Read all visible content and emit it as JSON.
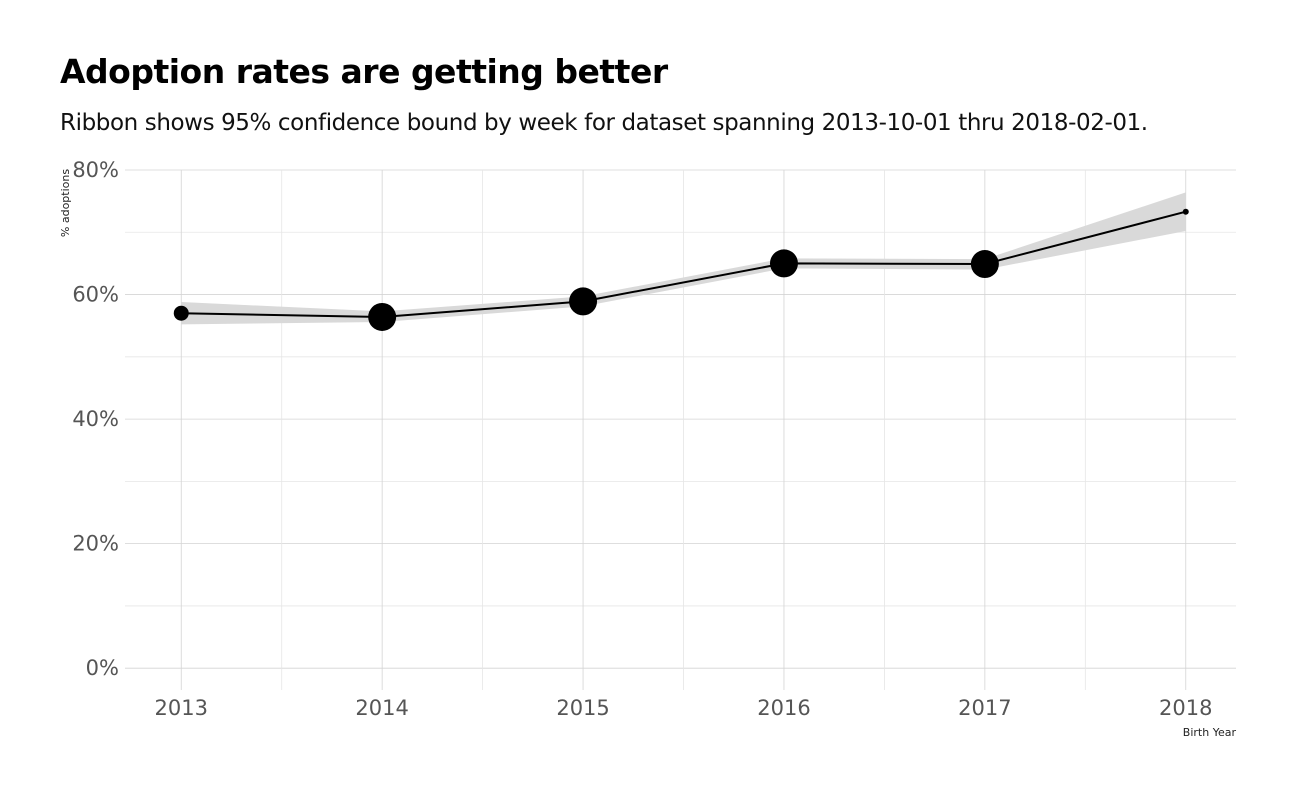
{
  "chart_data": {
    "type": "line",
    "title": "Adoption rates are getting better",
    "subtitle": "Ribbon shows 95% confidence bound by week for dataset spanning 2013-10-01 thru 2018-02-01.",
    "xlabel": "Birth Year",
    "ylabel": "% adoptions",
    "x": [
      2013,
      2014,
      2015,
      2016,
      2017,
      2018
    ],
    "x_ticks": [
      "2013",
      "2014",
      "2015",
      "2016",
      "2017",
      "2018"
    ],
    "xlim": [
      2012.72,
      2018.25
    ],
    "ylim": [
      -3.5,
      80
    ],
    "y_ticks": [
      0,
      20,
      40,
      60,
      80
    ],
    "y_tick_labels": [
      "0%",
      "20%",
      "40%",
      "60%",
      "80%"
    ],
    "grid": true,
    "series": [
      {
        "values": [
          57.0,
          56.4,
          58.9,
          65.0,
          64.9,
          73.3
        ],
        "lower": [
          55.2,
          55.6,
          58.1,
          64.2,
          64.0,
          70.2
        ],
        "upper": [
          58.8,
          57.3,
          59.7,
          65.8,
          65.7,
          76.4
        ],
        "point_size": [
          "small",
          "large",
          "large",
          "large",
          "large",
          "tiny"
        ],
        "line_color": "#000000",
        "ribbon_color": "#d9d9d9"
      }
    ]
  }
}
